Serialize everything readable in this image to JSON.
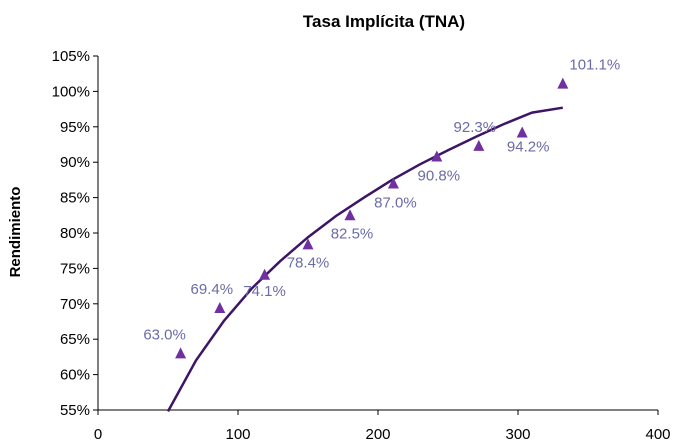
{
  "chart_data": {
    "type": "scatter",
    "title": "Tasa Implícita (TNA)",
    "xlabel": "",
    "ylabel": "Rendimiento",
    "xlim": [
      0,
      400
    ],
    "ylim": [
      55,
      105
    ],
    "x_ticks": [
      0,
      100,
      200,
      300,
      400
    ],
    "x_tick_labels": [
      "0",
      "100",
      "200",
      "300",
      "400"
    ],
    "y_ticks": [
      55,
      60,
      65,
      70,
      75,
      80,
      85,
      90,
      95,
      100,
      105
    ],
    "y_tick_labels": [
      "55%",
      "60%",
      "65%",
      "70%",
      "75%",
      "80%",
      "85%",
      "90%",
      "95%",
      "100%",
      "105%"
    ],
    "grid": false,
    "marker_color": "#7030a0",
    "label_color": "#6b6ba8",
    "trend_color": "#3d1566",
    "series": [
      {
        "x": [
          59,
          87,
          119,
          150,
          180,
          211,
          242,
          272,
          303,
          332
        ],
        "y": [
          63.0,
          69.4,
          74.1,
          78.4,
          82.5,
          87.0,
          90.8,
          92.3,
          94.2,
          101.1
        ],
        "labels": [
          "63.0%",
          "69.4%",
          "74.1%",
          "78.4%",
          "82.5%",
          "87.0%",
          "90.8%",
          "92.3%",
          "94.2%",
          "101.1%"
        ]
      }
    ],
    "trendline": {
      "type": "logarithmic",
      "x": [
        50,
        70,
        90,
        110,
        130,
        150,
        170,
        190,
        210,
        230,
        250,
        270,
        290,
        310,
        332
      ],
      "y": [
        54.8,
        62.0,
        67.6,
        72.2,
        76.0,
        79.4,
        82.4,
        85.0,
        87.5,
        89.7,
        91.7,
        93.6,
        95.4,
        97.0,
        97.7
      ]
    }
  }
}
